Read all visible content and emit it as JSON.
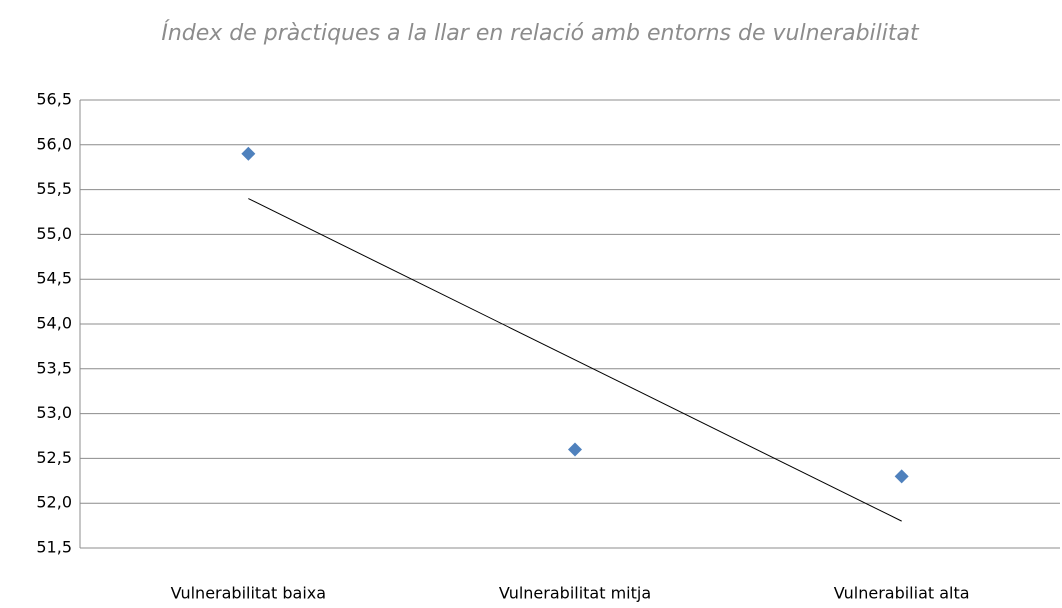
{
  "chart_data": {
    "type": "scatter",
    "title": "Índex de pràctiques a la llar en relació amb entorns de vulnerabilitat",
    "categories": [
      "Vulnerabilitat baixa",
      "Vulnerabilitat mitja",
      "Vulnerabiliat alta"
    ],
    "values": [
      55.9,
      52.6,
      52.3
    ],
    "color": "#4f81bd",
    "trendline": "linear",
    "ylim": [
      51.5,
      56.5
    ],
    "yticks": [
      {
        "value": 51.5,
        "label": "51,5"
      },
      {
        "value": 52,
        "label": "52,0"
      },
      {
        "value": 52.5,
        "label": "52,5"
      },
      {
        "value": 53,
        "label": "53,0"
      },
      {
        "value": 53.5,
        "label": "53,5"
      },
      {
        "value": 54,
        "label": "54,0"
      },
      {
        "value": 54.5,
        "label": "54,5"
      },
      {
        "value": 55,
        "label": "55,0"
      },
      {
        "value": 55.5,
        "label": "55,5"
      },
      {
        "value": 56,
        "label": "56,0"
      },
      {
        "value": 56.5,
        "label": "56,5"
      }
    ],
    "grid": true
  }
}
